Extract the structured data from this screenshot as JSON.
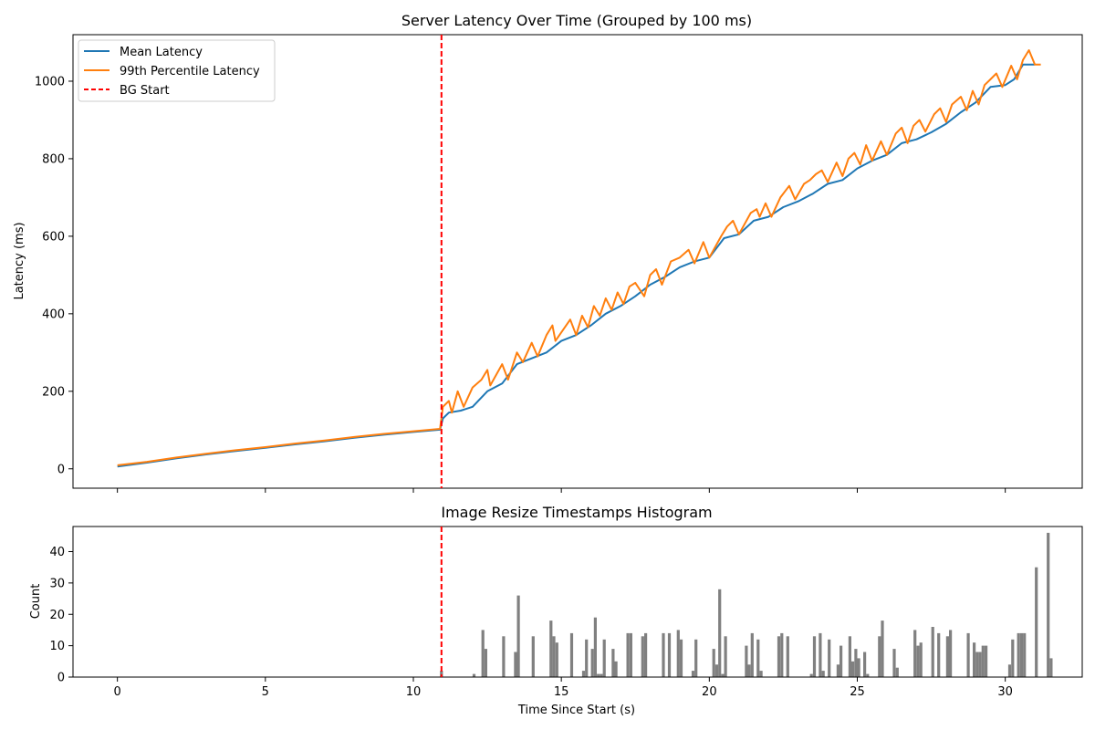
{
  "chart_data": [
    {
      "type": "line",
      "title": "Server Latency Over Time (Grouped by 100 ms)",
      "xlabel": "",
      "ylabel": "Latency (ms)",
      "xlim": [
        -1.5,
        32.6
      ],
      "ylim": [
        -50,
        1120
      ],
      "x_ticks": [
        0,
        5,
        10,
        15,
        20,
        25,
        30
      ],
      "y_ticks": [
        0,
        200,
        400,
        600,
        800,
        1000
      ],
      "legend_position": "upper-left",
      "series": [
        {
          "name": "Mean Latency",
          "color": "#1f77b4",
          "points": [
            [
              0,
              6
            ],
            [
              1,
              16
            ],
            [
              2,
              27
            ],
            [
              3,
              37
            ],
            [
              4,
              46
            ],
            [
              5,
              54
            ],
            [
              6,
              63
            ],
            [
              7,
              71
            ],
            [
              8,
              80
            ],
            [
              9,
              88
            ],
            [
              10,
              95
            ],
            [
              10.9,
              101
            ],
            [
              11.0,
              130
            ],
            [
              11.2,
              145
            ],
            [
              11.6,
              150
            ],
            [
              12.0,
              160
            ],
            [
              12.5,
              200
            ],
            [
              13.0,
              220
            ],
            [
              13.5,
              270
            ],
            [
              14.0,
              285
            ],
            [
              14.5,
              300
            ],
            [
              15.0,
              330
            ],
            [
              15.5,
              345
            ],
            [
              16.0,
              370
            ],
            [
              16.5,
              400
            ],
            [
              17.0,
              420
            ],
            [
              17.5,
              445
            ],
            [
              18.0,
              475
            ],
            [
              18.5,
              495
            ],
            [
              19.0,
              520
            ],
            [
              19.5,
              535
            ],
            [
              20.0,
              545
            ],
            [
              20.5,
              595
            ],
            [
              21.0,
              605
            ],
            [
              21.5,
              640
            ],
            [
              22.0,
              650
            ],
            [
              22.5,
              675
            ],
            [
              23.0,
              690
            ],
            [
              23.5,
              710
            ],
            [
              24.0,
              735
            ],
            [
              24.5,
              745
            ],
            [
              25.0,
              775
            ],
            [
              25.5,
              795
            ],
            [
              26.0,
              810
            ],
            [
              26.5,
              840
            ],
            [
              27.0,
              850
            ],
            [
              27.5,
              868
            ],
            [
              28.0,
              890
            ],
            [
              28.5,
              920
            ],
            [
              29.0,
              945
            ],
            [
              29.5,
              985
            ],
            [
              30.0,
              990
            ],
            [
              30.3,
              1005
            ],
            [
              30.6,
              1043
            ],
            [
              31.0,
              1043
            ]
          ]
        },
        {
          "name": "99th Percentile Latency",
          "color": "#ff7f0e",
          "points": [
            [
              0,
              9
            ],
            [
              1,
              18
            ],
            [
              2,
              29
            ],
            [
              3,
              39
            ],
            [
              4,
              48
            ],
            [
              5,
              56
            ],
            [
              6,
              65
            ],
            [
              7,
              73
            ],
            [
              8,
              82
            ],
            [
              9,
              90
            ],
            [
              10,
              97
            ],
            [
              10.9,
              103
            ],
            [
              11.0,
              160
            ],
            [
              11.2,
              175
            ],
            [
              11.3,
              145
            ],
            [
              11.5,
              200
            ],
            [
              11.7,
              160
            ],
            [
              12.0,
              210
            ],
            [
              12.3,
              230
            ],
            [
              12.5,
              255
            ],
            [
              12.6,
              215
            ],
            [
              13.0,
              270
            ],
            [
              13.2,
              230
            ],
            [
              13.5,
              300
            ],
            [
              13.7,
              275
            ],
            [
              14.0,
              325
            ],
            [
              14.2,
              290
            ],
            [
              14.5,
              345
            ],
            [
              14.7,
              370
            ],
            [
              14.8,
              330
            ],
            [
              15.3,
              385
            ],
            [
              15.5,
              345
            ],
            [
              15.7,
              395
            ],
            [
              15.9,
              365
            ],
            [
              16.1,
              420
            ],
            [
              16.3,
              395
            ],
            [
              16.5,
              440
            ],
            [
              16.7,
              410
            ],
            [
              16.9,
              455
            ],
            [
              17.1,
              425
            ],
            [
              17.3,
              470
            ],
            [
              17.5,
              480
            ],
            [
              17.8,
              445
            ],
            [
              18.0,
              500
            ],
            [
              18.2,
              515
            ],
            [
              18.4,
              475
            ],
            [
              18.7,
              535
            ],
            [
              19.0,
              545
            ],
            [
              19.3,
              565
            ],
            [
              19.5,
              530
            ],
            [
              19.8,
              585
            ],
            [
              20.0,
              545
            ],
            [
              20.4,
              600
            ],
            [
              20.6,
              625
            ],
            [
              20.8,
              640
            ],
            [
              21.0,
              605
            ],
            [
              21.4,
              660
            ],
            [
              21.6,
              670
            ],
            [
              21.7,
              650
            ],
            [
              21.9,
              685
            ],
            [
              22.1,
              650
            ],
            [
              22.4,
              700
            ],
            [
              22.7,
              730
            ],
            [
              22.9,
              695
            ],
            [
              23.2,
              735
            ],
            [
              23.4,
              745
            ],
            [
              23.6,
              760
            ],
            [
              23.8,
              770
            ],
            [
              24.0,
              740
            ],
            [
              24.3,
              790
            ],
            [
              24.5,
              755
            ],
            [
              24.7,
              800
            ],
            [
              24.9,
              815
            ],
            [
              25.1,
              785
            ],
            [
              25.3,
              835
            ],
            [
              25.5,
              795
            ],
            [
              25.8,
              845
            ],
            [
              26.0,
              810
            ],
            [
              26.3,
              865
            ],
            [
              26.5,
              880
            ],
            [
              26.7,
              840
            ],
            [
              26.9,
              885
            ],
            [
              27.1,
              900
            ],
            [
              27.3,
              870
            ],
            [
              27.6,
              915
            ],
            [
              27.8,
              930
            ],
            [
              28.0,
              895
            ],
            [
              28.2,
              940
            ],
            [
              28.5,
              960
            ],
            [
              28.7,
              925
            ],
            [
              28.9,
              975
            ],
            [
              29.1,
              940
            ],
            [
              29.3,
              990
            ],
            [
              29.5,
              1005
            ],
            [
              29.7,
              1020
            ],
            [
              29.9,
              985
            ],
            [
              30.2,
              1040
            ],
            [
              30.4,
              1005
            ],
            [
              30.6,
              1055
            ],
            [
              30.8,
              1080
            ],
            [
              31.0,
              1043
            ],
            [
              31.2,
              1043
            ]
          ]
        }
      ],
      "markers": [
        {
          "name": "BG Start",
          "x": 10.95,
          "color": "#ff0000",
          "style": "dashed"
        }
      ]
    },
    {
      "type": "bar",
      "title": "Image Resize Timestamps Histogram",
      "xlabel": "Time Since Start (s)",
      "ylabel": "Count",
      "xlim": [
        -1.5,
        32.6
      ],
      "ylim": [
        0,
        48
      ],
      "x_ticks": [
        0,
        5,
        10,
        15,
        20,
        25,
        30
      ],
      "y_ticks": [
        0,
        10,
        20,
        30,
        40
      ],
      "bar_width": 0.1,
      "bar_color": "#808080",
      "x": [
        10.95,
        12.05,
        12.35,
        12.45,
        13.05,
        13.45,
        13.55,
        14.05,
        14.65,
        14.75,
        14.85,
        15.35,
        15.75,
        15.85,
        16.05,
        16.15,
        16.25,
        16.35,
        16.45,
        16.75,
        16.85,
        17.25,
        17.35,
        17.75,
        17.85,
        18.45,
        18.65,
        18.95,
        19.05,
        19.45,
        19.55,
        20.15,
        20.25,
        20.35,
        20.45,
        20.55,
        21.25,
        21.35,
        21.45,
        21.65,
        21.75,
        22.35,
        22.45,
        22.65,
        23.45,
        23.55,
        23.75,
        23.85,
        24.05,
        24.35,
        24.45,
        24.75,
        24.85,
        24.95,
        25.05,
        25.25,
        25.35,
        25.75,
        25.85,
        26.25,
        26.35,
        26.95,
        27.05,
        27.15,
        27.55,
        27.75,
        28.05,
        28.15,
        28.75,
        28.95,
        29.05,
        29.15,
        29.25,
        29.35,
        30.15,
        30.25,
        30.45,
        30.55,
        30.65,
        31.05,
        31.45,
        31.55
      ],
      "values": [
        2,
        1,
        15,
        9,
        13,
        8,
        26,
        13,
        18,
        13,
        11,
        14,
        2,
        12,
        9,
        19,
        1,
        1,
        12,
        9,
        5,
        14,
        14,
        13,
        14,
        14,
        14,
        15,
        12,
        2,
        12,
        9,
        4,
        28,
        1,
        13,
        10,
        4,
        14,
        12,
        2,
        13,
        14,
        13,
        1,
        13,
        14,
        2,
        12,
        4,
        10,
        13,
        5,
        9,
        6,
        8,
        1,
        13,
        18,
        9,
        3,
        15,
        10,
        11,
        16,
        14,
        13,
        15,
        14,
        11,
        8,
        8,
        10,
        10,
        4,
        12,
        14,
        14,
        14,
        35,
        46,
        6
      ],
      "markers": [
        {
          "name": "BG Start",
          "x": 10.95,
          "color": "#ff0000",
          "style": "dashed"
        }
      ]
    }
  ],
  "legend": {
    "items": [
      {
        "label": "Mean Latency",
        "color": "#1f77b4",
        "style": "solid"
      },
      {
        "label": "99th Percentile Latency",
        "color": "#ff7f0e",
        "style": "solid"
      },
      {
        "label": "BG Start",
        "color": "#ff0000",
        "style": "dashed"
      }
    ]
  }
}
